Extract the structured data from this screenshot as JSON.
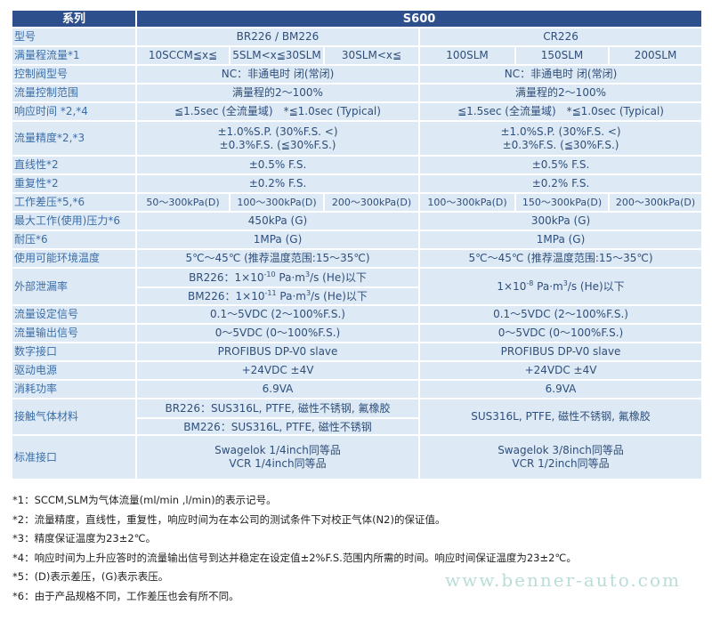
{
  "header": {
    "label": "系列",
    "series": "S600"
  },
  "rows": {
    "model": {
      "label": "型号",
      "left": "BR226 / BM226",
      "right": "CR226"
    },
    "range": {
      "label": "满量程流量*1",
      "cells": [
        "10SCCM≦x≦",
        "5SLM<x≦30SLM",
        "30SLM<x≦",
        "100SLM",
        "150SLM",
        "200SLM"
      ]
    },
    "valve": {
      "label": "控制阀型号",
      "left": "NC：非通电时 闭(常闭)",
      "right": "NC：非通电时 闭(常闭)"
    },
    "control": {
      "label": "流量控制范围",
      "left": "满量程的2～100%",
      "right": "满量程的2～100%"
    },
    "response": {
      "label": "响应时间 *2,*4",
      "left": "≦1.5sec (全流量域)　*≦1.0sec (Typical)",
      "right": "≦1.5sec (全流量域)　*≦1.0sec (Typical)"
    },
    "accuracy": {
      "label": "流量精度*2,*3",
      "left1": "±1.0%S.P. (30%F.S. <)",
      "left2": "±0.3%F.S. (≦30%F.S.)",
      "right1": "±1.0%S.P. (30%F.S. <)",
      "right2": "±0.3%F.S. (≦30%F.S.)"
    },
    "linearity": {
      "label": "直线性*2",
      "left": "±0.5% F.S.",
      "right": "±0.5% F.S."
    },
    "repeat": {
      "label": "重复性*2",
      "left": "±0.2% F.S.",
      "right": "±0.2% F.S."
    },
    "diffp": {
      "label": "工作差压*5,*6",
      "cells": [
        "50～300kPa(D)",
        "100～300kPa(D)",
        "200～300kPa(D)",
        "100～300kPa(D)",
        "150～300kPa(D)",
        "200～300kPa(D)"
      ]
    },
    "maxp": {
      "label": "最大工作(使用)压力*6",
      "left": "450kPa (G)",
      "right": "300kPa (G)"
    },
    "proof": {
      "label": "耐压*6",
      "left": "1MPa (G)",
      "right": "1MPa (G)"
    },
    "temp": {
      "label": "使用可能环境温度",
      "left": "5℃～45℃ (推荐温度范围:15～35℃)",
      "right": "5℃～45℃ (推荐温度范围:15～35℃)"
    },
    "leak": {
      "label": "外部泄漏率",
      "l1a": "BR226：1×10",
      "l1e": "-10",
      "l2a": "BM226：1×10",
      "l2e": "-11",
      "ra": "1×10",
      "re": "-8",
      "unit": " Pa·m",
      "u3": "3",
      "tail": "/s (He)以下"
    },
    "setsig": {
      "label": "流量设定信号",
      "left": "0.1～5VDC (2～100%F.S.)",
      "right": "0.1～5VDC (2～100%F.S.)"
    },
    "outsig": {
      "label": "流量输出信号",
      "left": "0～5VDC (0～100%F.S.)",
      "right": "0～5VDC (0～100%F.S.)"
    },
    "digital": {
      "label": "数字接口",
      "left": "PROFIBUS DP-V0 slave",
      "right": "PROFIBUS DP-V0 slave"
    },
    "power": {
      "label": "驱动电源",
      "left": "+24VDC ±4V",
      "right": "+24VDC ±4V"
    },
    "consume": {
      "label": "消耗功率",
      "left": "6.9VA",
      "right": "6.9VA"
    },
    "material": {
      "label": "接触气体材料",
      "left1": "BR226：SUS316L, PTFE, 磁性不锈钢, 氟橡胶",
      "left2": "BM226：SUS316L, PTFE, 磁性不锈钢",
      "right": "SUS316L, PTFE, 磁性不锈钢, 氟橡胶"
    },
    "fitting": {
      "label": "标准接口",
      "left1": "Swagelok 1/4inch同等品",
      "left2": "VCR 1/4inch同等品",
      "right1": "Swagelok 3/8inch同等品",
      "right2": "VCR 1/2inch同等品"
    }
  },
  "notes": [
    "*1：SCCM,SLM为气体流量(ml/min ,l/min)的表示记号。",
    "*2：流量精度，直线性，重复性，响应时间为在本公司的测试条件下对校正气体(N2)的保证值。",
    "*3：精度保证温度为23±2℃。",
    "*4：响应时间为上升应答时的流量输出信号到达并稳定在设定值±2%F.S.范围内所需的时间。响应时间保证温度为23±2℃。",
    "*5：(D)表示差压，(G)表示表压。",
    "*6：由于产品规格不同，工作差压也会有所不同。"
  ],
  "watermark": "www.benner-auto.com",
  "colors": {
    "header": "#2d4f8c",
    "cell": "#dde9f5",
    "label": "#3b6ea8"
  }
}
